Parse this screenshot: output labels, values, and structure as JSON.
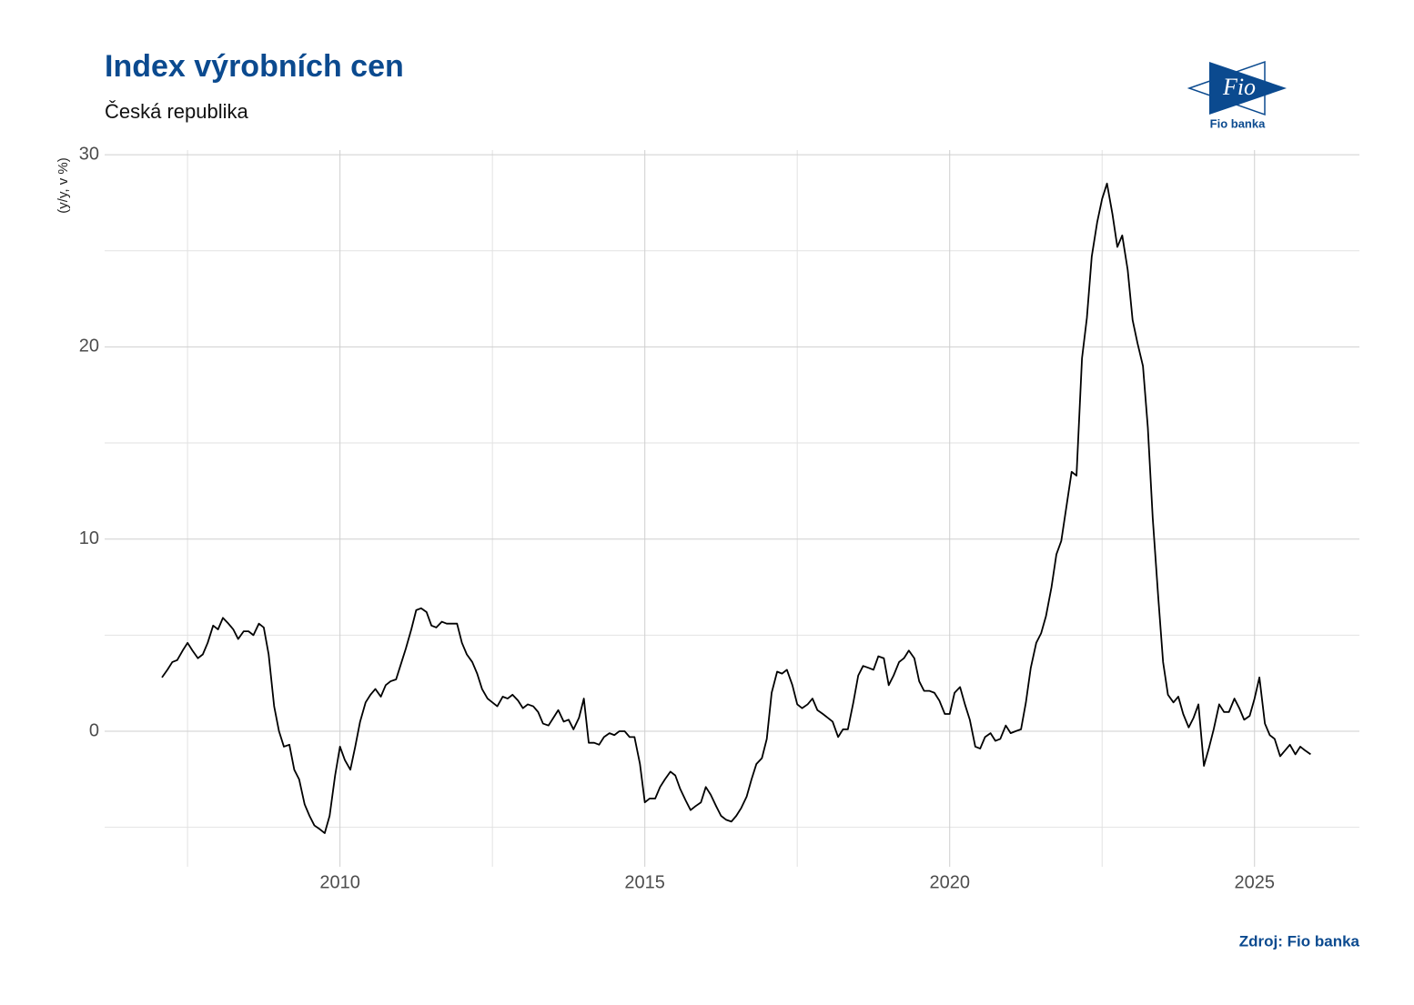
{
  "chart_data": {
    "type": "line",
    "title": "Index výrobních cen",
    "subtitle": "Česká republika",
    "y_label": "(y/y, v %)",
    "caption": "Zdroj: Fio banka",
    "xlim": [
      2006.14,
      2026.72
    ],
    "xticks": [
      2010,
      2015,
      2020,
      2025
    ],
    "ylim": [
      -7.05,
      30.24
    ],
    "yticks": [
      0,
      10,
      20,
      30
    ],
    "grid": true,
    "x": [
      2007.08,
      2007.17,
      2007.25,
      2007.33,
      2007.42,
      2007.5,
      2007.58,
      2007.67,
      2007.75,
      2007.83,
      2007.92,
      2008.0,
      2008.08,
      2008.17,
      2008.25,
      2008.33,
      2008.42,
      2008.5,
      2008.58,
      2008.67,
      2008.75,
      2008.83,
      2008.92,
      2009.0,
      2009.08,
      2009.17,
      2009.25,
      2009.33,
      2009.42,
      2009.5,
      2009.58,
      2009.67,
      2009.75,
      2009.83,
      2009.92,
      2010.0,
      2010.08,
      2010.17,
      2010.25,
      2010.33,
      2010.42,
      2010.5,
      2010.58,
      2010.67,
      2010.75,
      2010.83,
      2010.92,
      2011.0,
      2011.08,
      2011.17,
      2011.25,
      2011.33,
      2011.42,
      2011.5,
      2011.58,
      2011.67,
      2011.75,
      2011.83,
      2011.92,
      2012.0,
      2012.08,
      2012.17,
      2012.25,
      2012.33,
      2012.42,
      2012.5,
      2012.58,
      2012.67,
      2012.75,
      2012.83,
      2012.92,
      2013.0,
      2013.08,
      2013.17,
      2013.25,
      2013.33,
      2013.42,
      2013.5,
      2013.58,
      2013.67,
      2013.75,
      2013.83,
      2013.92,
      2014.0,
      2014.08,
      2014.17,
      2014.25,
      2014.33,
      2014.42,
      2014.5,
      2014.58,
      2014.67,
      2014.75,
      2014.83,
      2014.92,
      2015.0,
      2015.08,
      2015.17,
      2015.25,
      2015.33,
      2015.42,
      2015.5,
      2015.58,
      2015.67,
      2015.75,
      2015.83,
      2015.92,
      2016.0,
      2016.08,
      2016.17,
      2016.25,
      2016.33,
      2016.42,
      2016.5,
      2016.58,
      2016.67,
      2016.75,
      2016.83,
      2016.92,
      2017.0,
      2017.08,
      2017.17,
      2017.25,
      2017.33,
      2017.42,
      2017.5,
      2017.58,
      2017.67,
      2017.75,
      2017.83,
      2017.92,
      2018.0,
      2018.08,
      2018.17,
      2018.25,
      2018.33,
      2018.42,
      2018.5,
      2018.58,
      2018.67,
      2018.75,
      2018.83,
      2018.92,
      2019.0,
      2019.08,
      2019.17,
      2019.25,
      2019.33,
      2019.42,
      2019.5,
      2019.58,
      2019.67,
      2019.75,
      2019.83,
      2019.92,
      2020.0,
      2020.08,
      2020.17,
      2020.25,
      2020.33,
      2020.42,
      2020.5,
      2020.58,
      2020.67,
      2020.75,
      2020.83,
      2020.92,
      2021.0,
      2021.08,
      2021.17,
      2021.25,
      2021.33,
      2021.42,
      2021.5,
      2021.58,
      2021.67,
      2021.75,
      2021.83,
      2021.92,
      2022.0,
      2022.08,
      2022.17,
      2022.25,
      2022.33,
      2022.42,
      2022.5,
      2022.58,
      2022.67,
      2022.75,
      2022.83,
      2022.92,
      2023.0,
      2023.08,
      2023.17,
      2023.25,
      2023.33,
      2023.42,
      2023.5,
      2023.58,
      2023.67,
      2023.75,
      2023.83,
      2023.92,
      2024.0,
      2024.08,
      2024.17,
      2024.25,
      2024.33,
      2024.42,
      2024.5,
      2024.58,
      2024.67,
      2024.75,
      2024.83,
      2024.92,
      2025.0,
      2025.08,
      2025.17,
      2025.25,
      2025.33,
      2025.42,
      2025.5,
      2025.58,
      2025.67,
      2025.75,
      2025.83,
      2025.92
    ],
    "series": [
      {
        "color": "#000000",
        "values": [
          2.8,
          3.2,
          3.6,
          3.7,
          4.2,
          4.6,
          4.2,
          3.8,
          4.0,
          4.6,
          5.5,
          5.3,
          5.9,
          5.6,
          5.3,
          4.8,
          5.2,
          5.2,
          5.0,
          5.6,
          5.4,
          4.0,
          1.3,
          0.0,
          -0.8,
          -0.7,
          -2.0,
          -2.5,
          -3.8,
          -4.4,
          -4.9,
          -5.1,
          -5.3,
          -4.4,
          -2.3,
          -0.8,
          -1.5,
          -2.0,
          -0.8,
          0.5,
          1.5,
          1.9,
          2.2,
          1.8,
          2.4,
          2.6,
          2.7,
          3.5,
          4.3,
          5.3,
          6.3,
          6.4,
          6.2,
          5.5,
          5.4,
          5.7,
          5.6,
          5.6,
          5.6,
          4.6,
          4.0,
          3.6,
          3.0,
          2.2,
          1.7,
          1.5,
          1.3,
          1.8,
          1.7,
          1.9,
          1.6,
          1.2,
          1.4,
          1.3,
          1.0,
          0.4,
          0.3,
          0.7,
          1.1,
          0.5,
          0.6,
          0.1,
          0.7,
          1.7,
          -0.6,
          -0.6,
          -0.7,
          -0.3,
          -0.1,
          -0.2,
          0.0,
          0.0,
          -0.3,
          -0.3,
          -1.7,
          -3.7,
          -3.5,
          -3.5,
          -2.9,
          -2.5,
          -2.1,
          -2.3,
          -3.0,
          -3.6,
          -4.1,
          -3.9,
          -3.7,
          -2.9,
          -3.3,
          -3.9,
          -4.4,
          -4.6,
          -4.7,
          -4.4,
          -4.0,
          -3.4,
          -2.5,
          -1.7,
          -1.4,
          -0.4,
          2.0,
          3.1,
          3.0,
          3.2,
          2.4,
          1.4,
          1.2,
          1.4,
          1.7,
          1.1,
          0.9,
          0.7,
          0.5,
          -0.3,
          0.1,
          0.1,
          1.5,
          2.9,
          3.4,
          3.3,
          3.2,
          3.9,
          3.8,
          2.4,
          2.9,
          3.6,
          3.8,
          4.2,
          3.8,
          2.6,
          2.1,
          2.1,
          2.0,
          1.6,
          0.9,
          0.9,
          2.0,
          2.3,
          1.4,
          0.6,
          -0.8,
          -0.9,
          -0.3,
          -0.1,
          -0.5,
          -0.4,
          0.3,
          -0.1,
          0.0,
          0.1,
          1.5,
          3.3,
          4.6,
          5.1,
          6.0,
          7.5,
          9.2,
          9.9,
          11.8,
          13.5,
          13.3,
          19.4,
          21.5,
          24.7,
          26.5,
          27.7,
          28.5,
          26.9,
          25.2,
          25.8,
          24.0,
          21.4,
          20.2,
          19.0,
          15.8,
          11.1,
          7.0,
          3.6,
          1.9,
          1.5,
          1.8,
          0.9,
          0.2,
          0.7,
          1.4,
          -1.8,
          -0.9,
          0.1,
          1.4,
          1.0,
          1.0,
          1.7,
          1.2,
          0.6,
          0.8,
          1.7,
          2.8,
          0.4,
          -0.2,
          -0.4,
          -1.3,
          -1.0,
          -0.7,
          -1.2,
          -0.8,
          -1.0,
          -1.2
        ]
      }
    ]
  },
  "logo": {
    "mark": "Fio",
    "name": "Fio banka"
  }
}
